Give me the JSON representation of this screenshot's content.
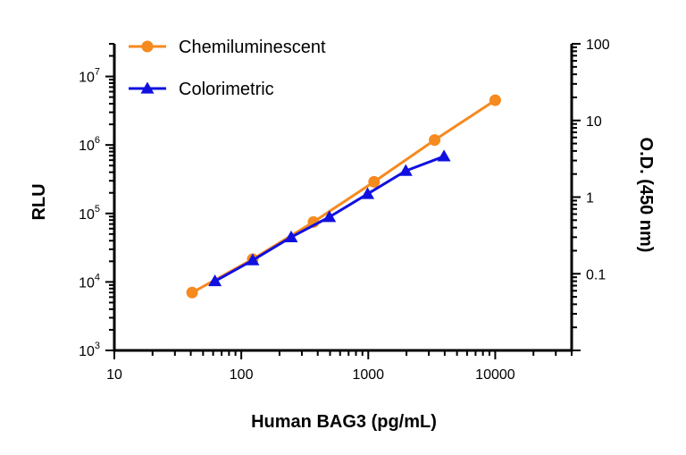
{
  "chart_data": {
    "type": "line",
    "xlabel": "Human  BAG3 (pg/mL)",
    "ylabel_left": "RLU",
    "ylabel_right": "O.D. (450 nm)",
    "x_scale": "log",
    "y_left_scale": "log",
    "y_right_scale": "log",
    "xlim": [
      10,
      40000
    ],
    "ylim_left": [
      1000,
      30000000
    ],
    "ylim_right": [
      0.01,
      100
    ],
    "x_ticks": [
      {
        "value": 10,
        "label": "10"
      },
      {
        "value": 100,
        "label": "100"
      },
      {
        "value": 1000,
        "label": "1000"
      },
      {
        "value": 10000,
        "label": "10000"
      }
    ],
    "y_left_ticks": [
      {
        "value": 1000,
        "base": "10",
        "exp": "3"
      },
      {
        "value": 10000,
        "base": "10",
        "exp": "4"
      },
      {
        "value": 100000,
        "base": "10",
        "exp": "5"
      },
      {
        "value": 1000000,
        "base": "10",
        "exp": "6"
      },
      {
        "value": 10000000,
        "base": "10",
        "exp": "7"
      }
    ],
    "y_right_ticks": [
      {
        "value": 0.1,
        "label": "0.1"
      },
      {
        "value": 1,
        "label": "1"
      },
      {
        "value": 10,
        "label": "10"
      },
      {
        "value": 100,
        "label": "100"
      }
    ],
    "grid": false,
    "legend_position": "top-left",
    "series": [
      {
        "name": "Chemiluminescent",
        "axis": "left",
        "marker": "circle",
        "color": "#F58A1F",
        "points": [
          [
            41,
            7000
          ],
          [
            123,
            21500
          ],
          [
            370,
            75000
          ],
          [
            1111,
            290000
          ],
          [
            3333,
            1180000
          ],
          [
            10000,
            4500000
          ]
        ]
      },
      {
        "name": "Colorimetric",
        "axis": "right",
        "marker": "triangle",
        "color": "#1010E0",
        "points": [
          [
            62,
            0.08
          ],
          [
            123,
            0.15
          ],
          [
            247,
            0.3
          ],
          [
            494,
            0.55
          ],
          [
            988,
            1.1
          ],
          [
            1975,
            2.2
          ],
          [
            3950,
            3.4
          ]
        ]
      }
    ]
  }
}
